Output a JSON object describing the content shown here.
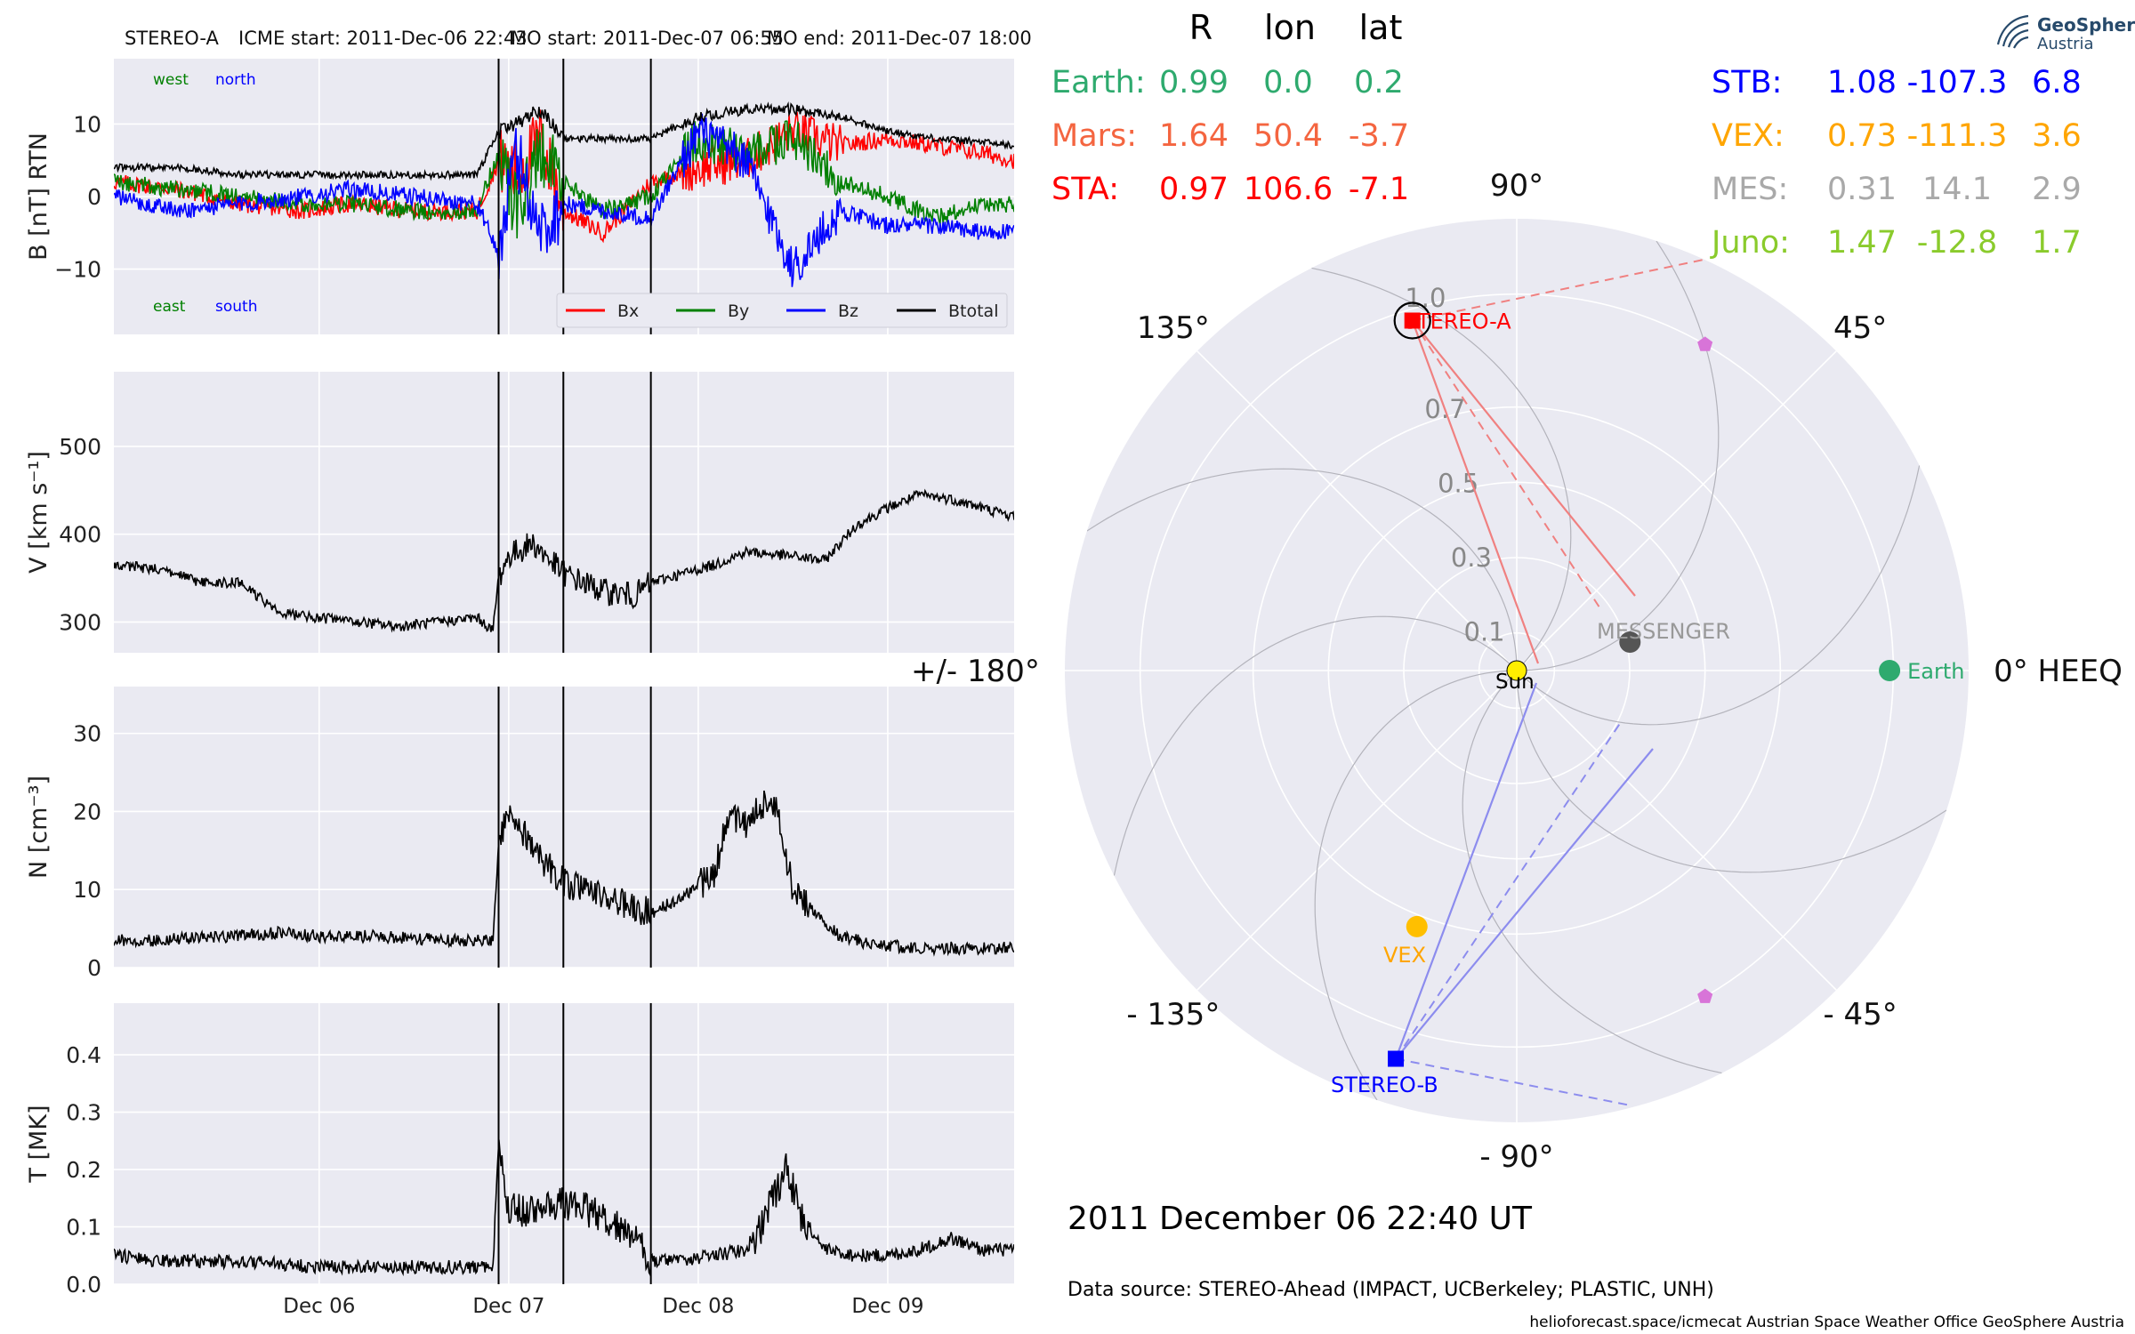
{
  "header": {
    "spacecraft": "STEREO-A",
    "icme_start": "ICME start: 2011-Dec-06 22:43",
    "mo_start": "MO start: 2011-Dec-07 06:55",
    "mo_end": "MO end: 2011-Dec-07 18:00"
  },
  "timeseries": {
    "x_ticks": [
      "Dec 06",
      "Dec 07",
      "Dec 08",
      "Dec 09"
    ],
    "x_range_hours": [
      -26,
      88
    ],
    "vlines_hours": [
      22.72,
      30.92,
      42.0
    ],
    "panels": [
      {
        "key": "B",
        "ylabel": "B [nT] RTN",
        "ylim": [
          -19,
          19
        ],
        "yticks": [
          "10",
          "0",
          "−10"
        ],
        "ytick_values": [
          10,
          0,
          -10
        ]
      },
      {
        "key": "V",
        "ylabel": "V [km s⁻¹]",
        "ylim": [
          265,
          585
        ],
        "yticks": [
          "500",
          "400",
          "300"
        ],
        "ytick_values": [
          500,
          400,
          300
        ]
      },
      {
        "key": "N",
        "ylabel": "N [cm⁻³]",
        "ylim": [
          0,
          36
        ],
        "yticks": [
          "30",
          "20",
          "10",
          "0"
        ],
        "ytick_values": [
          30,
          20,
          10,
          0
        ]
      },
      {
        "key": "T",
        "ylabel": "T [MK]",
        "ylim": [
          0,
          0.49
        ],
        "yticks": [
          "0.4",
          "0.3",
          "0.2",
          "0.1",
          "0.0"
        ],
        "ytick_values": [
          0.4,
          0.3,
          0.2,
          0.1,
          0.0
        ]
      }
    ],
    "b_labels": {
      "west": "west",
      "north": "north",
      "east": "east",
      "south": "south"
    },
    "legend": [
      {
        "label": "Bx",
        "color": "#ff0000"
      },
      {
        "label": "By",
        "color": "#008000"
      },
      {
        "label": "Bz",
        "color": "#0000ff"
      },
      {
        "label": "Btotal",
        "color": "#000000"
      }
    ]
  },
  "chart_data": [
    {
      "type": "line",
      "title": "STEREO-A",
      "ylabel": "B [nT] RTN",
      "xlabel": "",
      "x_hours_since_2011-12-06T00": true,
      "series": [
        {
          "name": "Bx",
          "color": "#ff0000",
          "x": [
            -26,
            -18,
            -10,
            -2,
            4,
            12,
            20,
            22.7,
            25,
            28,
            31,
            36,
            42,
            48,
            54,
            60,
            66,
            72,
            78,
            84,
            88
          ],
          "values": [
            2,
            1,
            -1,
            -2,
            -1,
            -2,
            -2,
            5,
            3,
            8,
            -2,
            -5,
            2,
            4,
            5,
            9,
            7,
            8,
            7,
            6,
            5
          ]
        },
        {
          "name": "By",
          "color": "#008000",
          "x": [
            -26,
            -18,
            -10,
            -2,
            4,
            12,
            20,
            22.7,
            25,
            28,
            31,
            36,
            42,
            48,
            54,
            60,
            66,
            72,
            78,
            84,
            88
          ],
          "values": [
            2,
            1,
            0,
            -1,
            -1,
            -2,
            -2,
            6,
            -2,
            6,
            2,
            -2,
            0,
            8,
            6,
            8,
            2,
            0,
            -3,
            -1,
            -1
          ]
        },
        {
          "name": "Bz",
          "color": "#0000ff",
          "x": [
            -26,
            -18,
            -10,
            -2,
            4,
            12,
            20,
            22.7,
            25,
            28,
            31,
            36,
            42,
            48,
            54,
            60,
            66,
            72,
            78,
            84,
            88
          ],
          "values": [
            0,
            -2,
            -1,
            0,
            1,
            0,
            -1,
            -8,
            6,
            -5,
            -1,
            -2,
            -3,
            9,
            5,
            -10,
            -2,
            -4,
            -4,
            -5,
            -5
          ]
        },
        {
          "name": "Btotal",
          "color": "#000000",
          "x": [
            -26,
            -18,
            -10,
            -2,
            4,
            12,
            20,
            22.7,
            25,
            28,
            31,
            36,
            42,
            48,
            54,
            60,
            66,
            72,
            78,
            84,
            88
          ],
          "values": [
            4,
            4,
            3,
            3,
            3,
            3,
            3,
            9,
            10,
            12,
            8,
            8,
            8,
            11,
            12,
            12,
            11,
            9,
            8,
            7.5,
            7
          ]
        }
      ]
    },
    {
      "type": "line",
      "ylabel": "V [km s⁻¹]",
      "series": [
        {
          "name": "V",
          "color": "#000000",
          "x": [
            -26,
            -20,
            -15,
            -10,
            -5,
            0,
            5,
            10,
            15,
            20,
            22,
            22.7,
            24,
            27,
            31,
            36,
            40,
            42,
            46,
            50,
            54,
            60,
            64,
            68,
            72,
            76,
            80,
            84,
            88
          ],
          "values": [
            365,
            360,
            345,
            345,
            310,
            305,
            300,
            295,
            300,
            305,
            290,
            350,
            375,
            390,
            355,
            335,
            330,
            345,
            355,
            365,
            380,
            375,
            370,
            410,
            430,
            445,
            440,
            430,
            420
          ]
        }
      ]
    },
    {
      "type": "line",
      "ylabel": "N [cm⁻³]",
      "series": [
        {
          "name": "N",
          "color": "#000000",
          "x": [
            -26,
            -20,
            -12,
            -4,
            0,
            8,
            16,
            22,
            22.7,
            24,
            26,
            28,
            31,
            36,
            42,
            46,
            50,
            52,
            54,
            56,
            58,
            60,
            62,
            64,
            66,
            70,
            76,
            82,
            88
          ],
          "values": [
            3.5,
            3.5,
            4,
            4.5,
            4,
            4,
            3.5,
            3.5,
            16,
            20,
            17,
            14,
            11,
            9,
            7,
            9,
            12,
            20,
            18,
            21,
            20,
            10,
            8,
            6,
            4,
            3,
            2.5,
            2.5,
            2.5
          ]
        }
      ]
    },
    {
      "type": "line",
      "ylabel": "T [MK]",
      "series": [
        {
          "name": "T",
          "color": "#000000",
          "x": [
            -26,
            -20,
            -12,
            -4,
            0,
            8,
            16,
            22,
            22.7,
            24,
            28,
            31,
            36,
            40,
            42,
            46,
            50,
            54,
            57,
            59,
            61,
            64,
            68,
            72,
            76,
            80,
            84,
            88
          ],
          "values": [
            0.05,
            0.04,
            0.04,
            0.035,
            0.03,
            0.03,
            0.03,
            0.03,
            0.25,
            0.13,
            0.13,
            0.14,
            0.12,
            0.08,
            0.04,
            0.04,
            0.05,
            0.06,
            0.13,
            0.21,
            0.12,
            0.06,
            0.05,
            0.05,
            0.06,
            0.08,
            0.06,
            0.06
          ]
        }
      ]
    },
    {
      "type": "scatter",
      "title": "2011 December 06  22:40 UT",
      "polar": true,
      "radial_ticks": [
        "0.1",
        "0.3",
        "0.5",
        "0.7",
        "1.0"
      ],
      "radial_tick_values": [
        0.1,
        0.3,
        0.5,
        0.7,
        1.0
      ],
      "angle_labels": [
        {
          "label": "0° HEEQ",
          "deg": 0
        },
        {
          "label": "45°",
          "deg": 45
        },
        {
          "label": "90°",
          "deg": 90
        },
        {
          "label": "135°",
          "deg": 135
        },
        {
          "label": "+/- 180°",
          "deg": 180
        },
        {
          "label": "- 135°",
          "deg": -135
        },
        {
          "label": "- 90°",
          "deg": -90
        },
        {
          "label": "- 45°",
          "deg": -45
        }
      ],
      "objects": [
        {
          "name": "Sun",
          "r": 0.0,
          "lon": 0.0,
          "color": "#ffee00",
          "marker": "circle"
        },
        {
          "name": "Earth",
          "r": 0.99,
          "lon": 0.0,
          "color": "#2eaa6e",
          "marker": "circle"
        },
        {
          "name": "MESSENGER",
          "r": 0.31,
          "lon": 14.1,
          "color": "#555555",
          "marker": "circle"
        },
        {
          "name": "VEX",
          "r": 0.73,
          "lon": -111.3,
          "color": "#ffbf00",
          "marker": "circle"
        },
        {
          "name": "STEREO-A",
          "r": 0.97,
          "lon": 106.6,
          "color": "#ff0000",
          "marker": "square"
        },
        {
          "name": "STEREO-B",
          "r": 1.08,
          "lon": -107.3,
          "color": "#0000ff",
          "marker": "square"
        },
        {
          "name": "",
          "r": 1.0,
          "lon": 60.0,
          "color": "#d874d8",
          "marker": "pentagon"
        },
        {
          "name": "",
          "r": 1.0,
          "lon": -60.0,
          "color": "#d874d8",
          "marker": "pentagon"
        }
      ]
    }
  ],
  "positions_table": {
    "headers": [
      "R",
      "lon",
      "lat"
    ],
    "left": [
      {
        "name": "Earth:",
        "r": "0.99",
        "lon": "0.0",
        "lat": "0.2",
        "color": "#2eaa6e"
      },
      {
        "name": "Mars:",
        "r": "1.64",
        "lon": "50.4",
        "lat": "-3.7",
        "color": "#f46540"
      },
      {
        "name": "STA:",
        "r": "0.97",
        "lon": "106.6",
        "lat": "-7.1",
        "color": "#ff0000"
      }
    ],
    "right": [
      {
        "name": "STB:",
        "r": "1.08",
        "lon": "-107.3",
        "lat": "6.8",
        "color": "#0000ff"
      },
      {
        "name": "VEX:",
        "r": "0.73",
        "lon": "-111.3",
        "lat": "3.6",
        "color": "#ffa500"
      },
      {
        "name": "MES:",
        "r": "0.31",
        "lon": "14.1",
        "lat": "2.9",
        "color": "#a9a9a9"
      },
      {
        "name": "Juno:",
        "r": "1.47",
        "lon": "-12.8",
        "lat": "1.7",
        "color": "#8acb2c"
      }
    ]
  },
  "polar_labels": {
    "sun": "Sun",
    "earth": "Earth",
    "messenger": "MESSENGER",
    "vex": "VEX",
    "stereo_a": "STEREO-A",
    "stereo_b": "STEREO-B"
  },
  "date_label": "2011 December 06  22:40 UT",
  "data_source": "Data source: STEREO-Ahead (IMPACT, UCBerkeley; PLASTIC, UNH)",
  "footer": "helioforecast.space/icmecat   Austrian Space Weather Office   GeoSphere Austria",
  "logo": {
    "line1": "GeoSphere",
    "line2": "Austria"
  },
  "colors": {
    "panel_bg": "#eaeaf2",
    "grid": "#ffffff"
  }
}
